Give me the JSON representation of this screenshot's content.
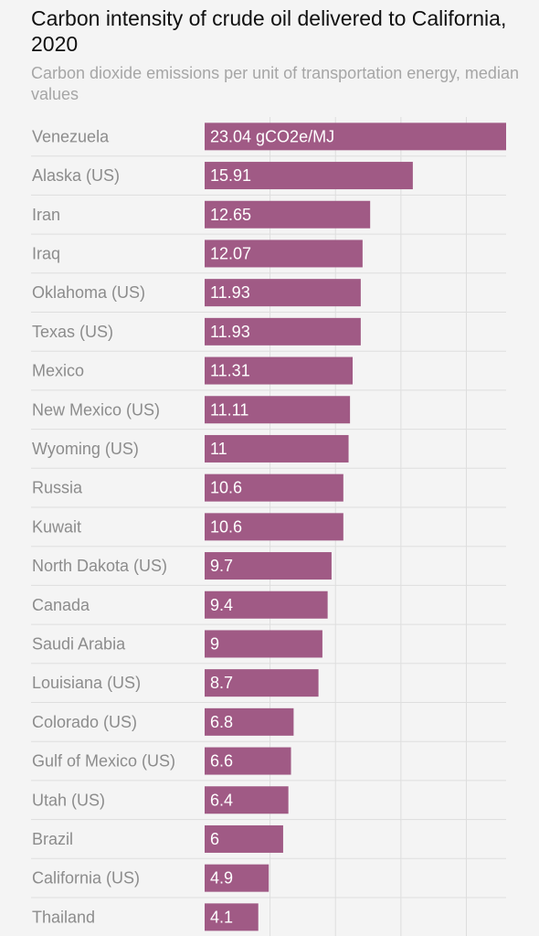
{
  "chart_data": {
    "type": "bar",
    "orientation": "horizontal",
    "title": "Carbon intensity of crude oil delivered to California, 2020",
    "subtitle": "Carbon dioxide emissions per unit of transportation energy, median values",
    "unit_label": "gCO2e/MJ",
    "categories": [
      "Venezuela",
      "Alaska (US)",
      "Iran",
      "Iraq",
      "Oklahoma (US)",
      "Texas (US)",
      "Mexico",
      "New Mexico (US)",
      "Wyoming (US)",
      "Russia",
      "Kuwait",
      "North Dakota (US)",
      "Canada",
      "Saudi Arabia",
      "Louisiana (US)",
      "Colorado (US)",
      "Gulf of Mexico (US)",
      "Utah (US)",
      "Brazil",
      "California (US)",
      "Thailand"
    ],
    "values": [
      23.04,
      15.91,
      12.65,
      12.07,
      11.93,
      11.93,
      11.31,
      11.11,
      11,
      10.6,
      10.6,
      9.7,
      9.4,
      9,
      8.7,
      6.8,
      6.6,
      6.4,
      6,
      4.9,
      4.1
    ],
    "value_labels": [
      "23.04 gCO2e/MJ",
      "15.91",
      "12.65",
      "12.07",
      "11.93",
      "11.93",
      "11.31",
      "11.11",
      "11",
      "10.6",
      "10.6",
      "9.7",
      "9.4",
      "9",
      "8.7",
      "6.8",
      "6.6",
      "6.4",
      "6",
      "4.9",
      "4.1"
    ],
    "xlim": [
      0,
      23.04
    ],
    "vertical_gridlines": [
      5,
      10,
      15,
      20
    ],
    "grid": true,
    "legend": "none",
    "colors": {
      "bar": "#a05a85",
      "bar_label": "#ffffff",
      "category_label": "#8c8c8c",
      "grid": "#dedede",
      "background": "#f4f4f4"
    }
  }
}
